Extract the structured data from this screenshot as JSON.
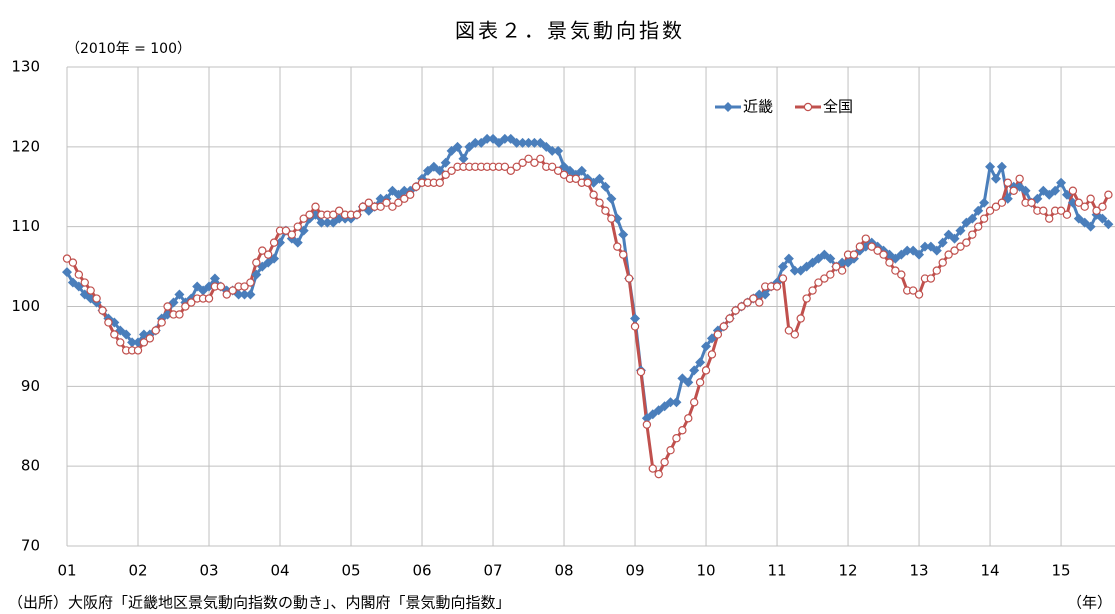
{
  "chart_data": {
    "type": "line",
    "title": "図表２．景気動向指数",
    "y_label": "（2010年 = 100）",
    "x_label": "（年）",
    "source": "（出所）大阪府「近畿地区景気動向指数の動き」、内閣府「景気動向指数」",
    "legend": "upper right",
    "grid": true,
    "ylim": [
      70,
      130
    ],
    "yticks": [
      70,
      80,
      90,
      100,
      110,
      120,
      130
    ],
    "categories": [
      "01",
      null,
      null,
      null,
      null,
      null,
      null,
      null,
      null,
      null,
      null,
      null,
      "02",
      null,
      null,
      null,
      null,
      null,
      null,
      null,
      null,
      null,
      null,
      null,
      "03",
      null,
      null,
      null,
      null,
      null,
      null,
      null,
      null,
      null,
      null,
      null,
      "04",
      null,
      null,
      null,
      null,
      null,
      null,
      null,
      null,
      null,
      null,
      null,
      "05",
      null,
      null,
      null,
      null,
      null,
      null,
      null,
      null,
      null,
      null,
      null,
      "06",
      null,
      null,
      null,
      null,
      null,
      null,
      null,
      null,
      null,
      null,
      null,
      "07",
      null,
      null,
      null,
      null,
      null,
      null,
      null,
      null,
      null,
      null,
      null,
      "08",
      null,
      null,
      null,
      null,
      null,
      null,
      null,
      null,
      null,
      null,
      null,
      "09",
      null,
      null,
      null,
      null,
      null,
      null,
      null,
      null,
      null,
      null,
      null,
      "10",
      null,
      null,
      null,
      null,
      null,
      null,
      null,
      null,
      null,
      null,
      null,
      "11",
      null,
      null,
      null,
      null,
      null,
      null,
      null,
      null,
      null,
      null,
      null,
      "12",
      null,
      null,
      null,
      null,
      null,
      null,
      null,
      null,
      null,
      null,
      null,
      "13",
      null,
      null,
      null,
      null,
      null,
      null,
      null,
      null,
      null,
      null,
      null,
      "14",
      null,
      null,
      null,
      null,
      null,
      null,
      null,
      null,
      null,
      null,
      null,
      "15",
      null,
      null,
      null,
      null,
      null,
      null,
      null,
      null
    ],
    "series": [
      {
        "name": "近畿",
        "color": "#4a7ebb",
        "marker": "diamond",
        "values": [
          104.3,
          103,
          102.5,
          101.5,
          101,
          100.5,
          99.5,
          98.5,
          98,
          97,
          96.5,
          95.5,
          95.5,
          96.5,
          96.5,
          97,
          98.5,
          99,
          100.5,
          101.5,
          100.5,
          101,
          102.5,
          102,
          102.5,
          103.5,
          102.5,
          102,
          102,
          101.5,
          101.5,
          101.5,
          104,
          105,
          105.5,
          106,
          108,
          109.5,
          108.5,
          108,
          109.5,
          111,
          111.5,
          110.5,
          110.5,
          110.5,
          111,
          111,
          111,
          111.5,
          112.5,
          112,
          112.5,
          113.5,
          113.5,
          114.5,
          114,
          114.5,
          114.5,
          115,
          116,
          117,
          117.5,
          117,
          118,
          119.5,
          120,
          118.5,
          120,
          120.5,
          120.5,
          121,
          121,
          120.5,
          121,
          121,
          120.5,
          120.5,
          120.5,
          120.5,
          120.5,
          120,
          119.5,
          119.5,
          117.5,
          117,
          116.5,
          117,
          116,
          115.5,
          116,
          115,
          113.5,
          111,
          109,
          103.5,
          98.5,
          92,
          86,
          86.5,
          87,
          87.5,
          88,
          88,
          91,
          90.5,
          92,
          93,
          95,
          96,
          97,
          97.5,
          98.5,
          99.5,
          100,
          100.5,
          101,
          101.5,
          101.5,
          102.5,
          103,
          105,
          106,
          104.5,
          104.5,
          105,
          105.5,
          106,
          106.5,
          106,
          105,
          105.5,
          105.5,
          106,
          107,
          107.5,
          108,
          107.5,
          107,
          106.5,
          106,
          106.5,
          107,
          107,
          106.5,
          107.5,
          107.5,
          107,
          108,
          109,
          108.5,
          109.5,
          110.5,
          111,
          112,
          113,
          117.5,
          116,
          117.5,
          113.5,
          115,
          115,
          114.5,
          113,
          113.5,
          114.5,
          114,
          114.5,
          115.5,
          114,
          113,
          111,
          110.5,
          110,
          111.5,
          111,
          110.3
        ]
      },
      {
        "name": "全国",
        "color": "#c0504d",
        "marker": "circle",
        "values": [
          106,
          105.5,
          104,
          103,
          102,
          101,
          99.5,
          98,
          96.5,
          95.5,
          94.5,
          94.5,
          94.5,
          95.5,
          96,
          97,
          98,
          100,
          99,
          99,
          100,
          100.5,
          101,
          101,
          101,
          102.5,
          102.5,
          101.5,
          102,
          102.5,
          102.5,
          103,
          105.5,
          107,
          106.5,
          108,
          109.5,
          109.5,
          109,
          110,
          111,
          111.5,
          112.5,
          111.5,
          111.5,
          111.5,
          112,
          111.5,
          111.5,
          111.5,
          112.5,
          113,
          112.5,
          112.5,
          113,
          112.5,
          113,
          113.5,
          114,
          115,
          115.5,
          115.5,
          115.5,
          115.5,
          116.5,
          117,
          117.5,
          117.5,
          117.5,
          117.5,
          117.5,
          117.5,
          117.5,
          117.5,
          117.5,
          117,
          117.5,
          118,
          118.5,
          118,
          118.5,
          117.5,
          117.5,
          117,
          116.5,
          116,
          116,
          115.5,
          115.5,
          114,
          113,
          112,
          111,
          107.5,
          106.5,
          103.5,
          97.5,
          91.8,
          85.2,
          79.7,
          79,
          80.5,
          82,
          83.5,
          84.5,
          86,
          88,
          90.5,
          92,
          94,
          96.5,
          97.5,
          98.5,
          99.5,
          100,
          100.5,
          101,
          100.5,
          102.5,
          102.5,
          102.5,
          103.5,
          97,
          96.5,
          98.5,
          101,
          102,
          103,
          103.5,
          104,
          105,
          104.5,
          106.5,
          106.5,
          107.5,
          108.5,
          107.5,
          107,
          106.5,
          105.5,
          104.5,
          104,
          102,
          102,
          101.5,
          103.5,
          103.5,
          104.5,
          105.5,
          106.5,
          107,
          107.5,
          108,
          109,
          110,
          111,
          112,
          112.5,
          113,
          115.5,
          114.5,
          116,
          113,
          113,
          112,
          112,
          111,
          112,
          112,
          111.5,
          114.5,
          113,
          112.5,
          113.5,
          112,
          112.5,
          114
        ]
      }
    ]
  }
}
